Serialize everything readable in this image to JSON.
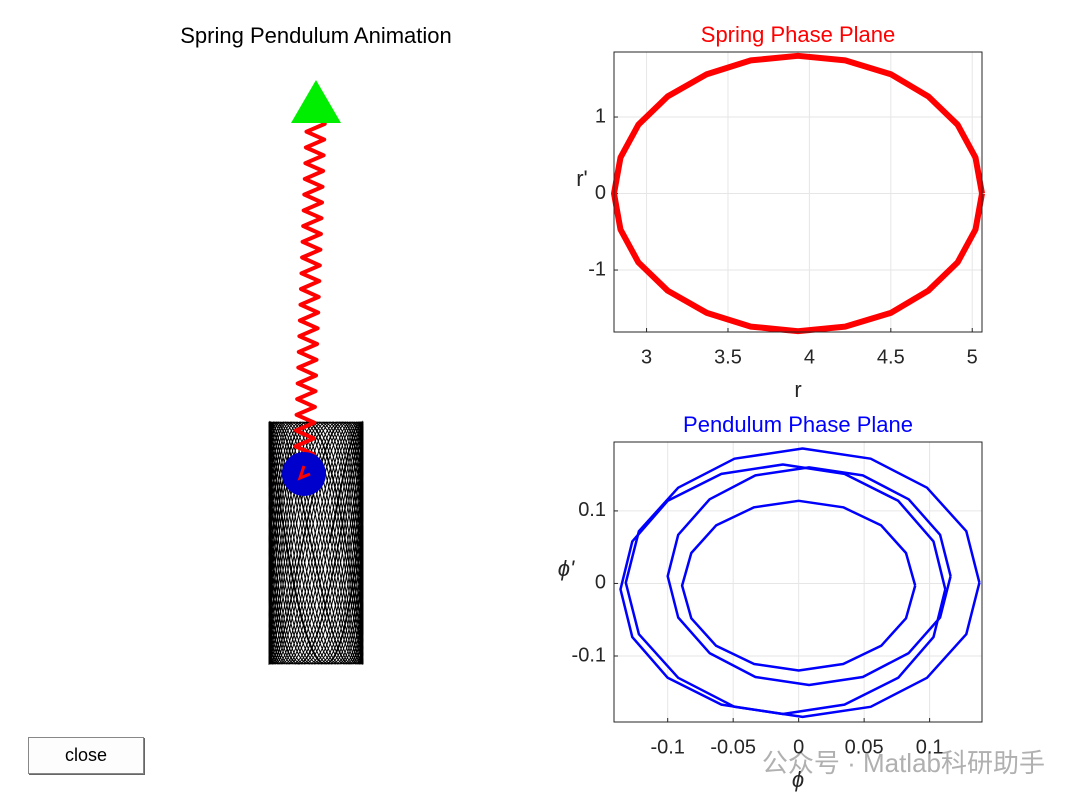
{
  "animation": {
    "title": "Spring Pendulum Animation"
  },
  "button": "close",
  "watermark": "公众号 · Matlab科研助手",
  "chart_data": [
    {
      "type": "line",
      "title": "Spring Phase Plane",
      "title_color": "#ff0000",
      "xlabel": "r",
      "ylabel": "r'",
      "xlim": [
        2.8,
        5.06
      ],
      "ylim": [
        -1.81,
        1.85
      ],
      "xticks": [
        3,
        3.5,
        4,
        4.5,
        5
      ],
      "yticks": [
        -1,
        0,
        1
      ],
      "grid": true,
      "color": "#ff0000",
      "x": [
        5.06,
        5.02,
        4.91,
        4.73,
        4.5,
        4.22,
        3.93,
        3.64,
        3.37,
        3.13,
        2.95,
        2.84,
        2.8,
        2.84,
        2.95,
        3.13,
        3.37,
        3.64,
        3.93,
        4.22,
        4.5,
        4.73,
        4.91,
        5.02,
        5.06
      ],
      "values": [
        0,
        0.47,
        0.9,
        1.27,
        1.56,
        1.74,
        1.8,
        1.74,
        1.56,
        1.27,
        0.9,
        0.47,
        0,
        -0.47,
        -0.9,
        -1.27,
        -1.56,
        -1.74,
        -1.8,
        -1.74,
        -1.56,
        -1.27,
        -0.9,
        -0.47,
        0
      ]
    },
    {
      "type": "line",
      "title": "Pendulum Phase Plane",
      "title_color": "#0000ff",
      "xlabel": "ϕ",
      "ylabel": "ϕ'",
      "xlim": [
        -0.141,
        0.14
      ],
      "ylim": [
        -0.191,
        0.195
      ],
      "xticks": [
        -0.1,
        -0.05,
        0,
        0.05,
        0.1
      ],
      "yticks": [
        -0.1,
        0,
        0.1
      ],
      "grid": true,
      "color": "#0000ff",
      "x": [
        0.089,
        0.082,
        0.063,
        0.034,
        0,
        -0.034,
        -0.063,
        -0.082,
        -0.089,
        -0.082,
        -0.063,
        -0.034,
        0,
        0.034,
        0.063,
        0.082,
        0.089,
        null,
        0.116,
        0.108,
        0.084,
        0.049,
        0.008,
        -0.033,
        -0.068,
        -0.092,
        -0.1,
        -0.092,
        -0.068,
        -0.033,
        0.008,
        0.049,
        0.084,
        0.108,
        0.116,
        null,
        0.112,
        0.103,
        0.076,
        0.035,
        -0.012,
        -0.059,
        -0.1,
        -0.127,
        -0.136,
        -0.127,
        -0.1,
        -0.059,
        -0.012,
        0.035,
        0.076,
        0.103,
        0.112,
        null,
        0.138,
        0.128,
        0.098,
        0.055,
        0.003,
        -0.049,
        -0.092,
        -0.122,
        -0.132,
        -0.122,
        -0.092,
        -0.049,
        0.003,
        0.055,
        0.098,
        0.128,
        0.138
      ],
      "values": [
        -0.003,
        0.042,
        0.08,
        0.105,
        0.114,
        0.105,
        0.08,
        0.042,
        -0.003,
        -0.048,
        -0.086,
        -0.111,
        -0.12,
        -0.111,
        -0.086,
        -0.048,
        -0.003,
        null,
        0.01,
        0.067,
        0.116,
        0.149,
        0.16,
        0.149,
        0.116,
        0.067,
        0.01,
        -0.047,
        -0.096,
        -0.129,
        -0.14,
        -0.129,
        -0.096,
        -0.047,
        0.01,
        null,
        -0.008,
        0.058,
        0.114,
        0.151,
        0.164,
        0.151,
        0.114,
        0.058,
        -0.008,
        -0.074,
        -0.13,
        -0.167,
        -0.18,
        -0.167,
        -0.13,
        -0.074,
        -0.008,
        null,
        0.001,
        0.072,
        0.132,
        0.172,
        0.186,
        0.172,
        0.132,
        0.072,
        0.001,
        -0.07,
        -0.13,
        -0.17,
        -0.184,
        -0.17,
        -0.13,
        -0.07,
        0.001
      ]
    }
  ]
}
